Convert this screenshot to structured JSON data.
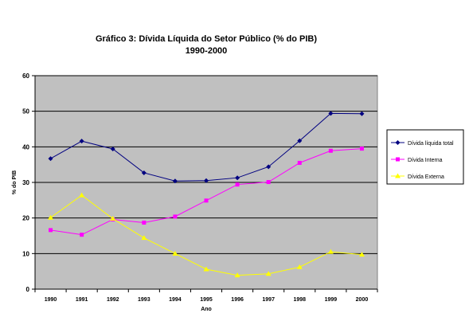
{
  "chart_data": {
    "type": "line",
    "title": "Gráfico 3: Dívida Líquida do Setor Público (% do PIB)",
    "subtitle": "1990-2000",
    "xlabel": "Ano",
    "ylabel": "% do PIB",
    "categories": [
      "1990",
      "1991",
      "1992",
      "1993",
      "1994",
      "1995",
      "1996",
      "1997",
      "1998",
      "1999",
      "2000"
    ],
    "ylim": [
      0,
      60
    ],
    "yticks": [
      0,
      10,
      20,
      30,
      40,
      50,
      60
    ],
    "grid": true,
    "plot_background": "#c0c0c0",
    "legend_position": "right",
    "series": [
      {
        "name": "Dívida líquida total",
        "color": "#000080",
        "marker": "diamond",
        "values": [
          36.7,
          41.6,
          39.4,
          32.7,
          30.4,
          30.5,
          31.3,
          34.4,
          41.7,
          49.4,
          49.3
        ]
      },
      {
        "name": "Dívida Interna",
        "color": "#ff00ff",
        "marker": "square",
        "values": [
          16.6,
          15.3,
          19.6,
          18.7,
          20.4,
          24.9,
          29.4,
          30.1,
          35.5,
          38.9,
          39.5
        ]
      },
      {
        "name": "Dívida Externa",
        "color": "#ffff00",
        "marker": "triangle",
        "values": [
          20.1,
          26.4,
          19.8,
          14.4,
          10.0,
          5.6,
          3.9,
          4.3,
          6.2,
          10.5,
          9.7
        ]
      }
    ]
  }
}
